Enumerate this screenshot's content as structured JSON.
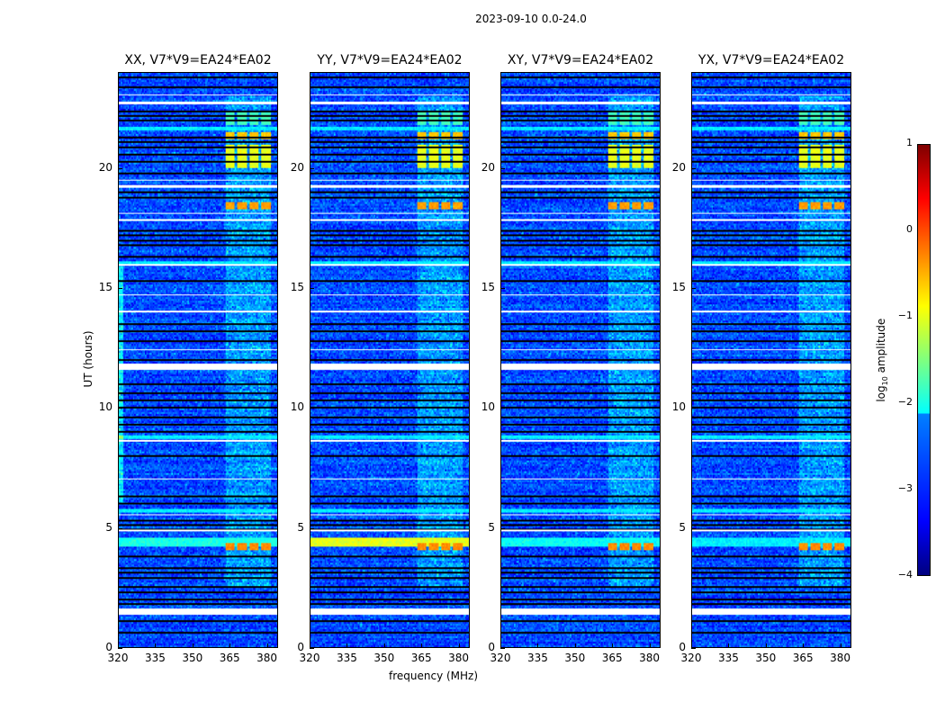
{
  "suptitle": "2023-09-10 0.0-24.0",
  "chart_data": {
    "type": "heatmap",
    "title": "2023-09-10 0.0-24.0",
    "xlabel": "frequency (MHz)",
    "ylabel": "UT (hours)",
    "xlim": [
      320,
      384.5
    ],
    "ylim": [
      0,
      24
    ],
    "xticks": [
      "320",
      "335",
      "350",
      "365",
      "380"
    ],
    "yticks": [
      "0",
      "5",
      "10",
      "15",
      "20"
    ],
    "panels": [
      {
        "title": "XX, V7*V9=EA24*EA02",
        "broadband_level": -2.0
      },
      {
        "title": "YY, V7*V9=EA24*EA02",
        "broadband_level": -1.0
      },
      {
        "title": "XY, V7*V9=EA24*EA02",
        "broadband_level": -2.1
      },
      {
        "title": "YX, V7*V9=EA24*EA02",
        "broadband_level": -2.2
      }
    ],
    "base_level": -3.0,
    "active_band_mhz": [
      363,
      382
    ],
    "active_band_level": -2.6,
    "rfi_subbands_mhz": [
      [
        363,
        367
      ],
      [
        368,
        372
      ],
      [
        373,
        377
      ],
      [
        378,
        381.5
      ]
    ],
    "rfi_events": [
      {
        "ut": [
          4.05,
          4.35
        ],
        "level": -0.3
      },
      {
        "ut": [
          18.3,
          18.6
        ],
        "level": -0.4
      },
      {
        "ut": [
          20.0,
          21.0
        ],
        "level": -1.0
      },
      {
        "ut": [
          21.2,
          21.5
        ],
        "level": -0.6
      },
      {
        "ut": [
          21.8,
          22.4
        ],
        "level": -1.8
      }
    ],
    "broadband_rows_ut": [
      [
        4.2,
        4.6
      ],
      [
        8.7,
        8.85
      ],
      [
        5.6,
        5.75
      ],
      [
        16.0,
        16.1
      ],
      [
        21.6,
        21.75
      ]
    ],
    "flagged_white_ut": [
      [
        1.35,
        1.6
      ],
      [
        4.85,
        4.92
      ],
      [
        5.5,
        5.55
      ],
      [
        7.0,
        7.05
      ],
      [
        8.6,
        8.65
      ],
      [
        11.6,
        11.85
      ],
      [
        12.4,
        12.45
      ],
      [
        14.0,
        14.05
      ],
      [
        14.7,
        14.75
      ],
      [
        15.95,
        16.0
      ],
      [
        17.8,
        17.9
      ],
      [
        18.1,
        18.15
      ],
      [
        19.2,
        19.3
      ],
      [
        19.5,
        19.55
      ],
      [
        22.7,
        22.8
      ],
      [
        23.05,
        23.1
      ]
    ],
    "flagged_black_ut": [
      0.6,
      1.1,
      1.8,
      2.0,
      2.3,
      2.5,
      2.9,
      3.1,
      3.3,
      3.8,
      4.9,
      5.1,
      5.3,
      6.0,
      6.3,
      8.0,
      9.0,
      9.3,
      9.6,
      10.0,
      10.3,
      10.6,
      11.0,
      12.0,
      12.8,
      13.2,
      13.5,
      15.3,
      16.3,
      16.8,
      17.0,
      17.2,
      17.4,
      18.8,
      19.0,
      19.8,
      20.3,
      20.6,
      20.9,
      21.1,
      21.3,
      22.0,
      22.2,
      22.4,
      23.4,
      23.8
    ],
    "colorbar": {
      "label": "log10 amplitude",
      "range": [
        -4,
        1
      ],
      "ticks": [
        "1",
        "0",
        "−1",
        "−2",
        "−3",
        "−4"
      ],
      "colormap": "jet"
    }
  }
}
